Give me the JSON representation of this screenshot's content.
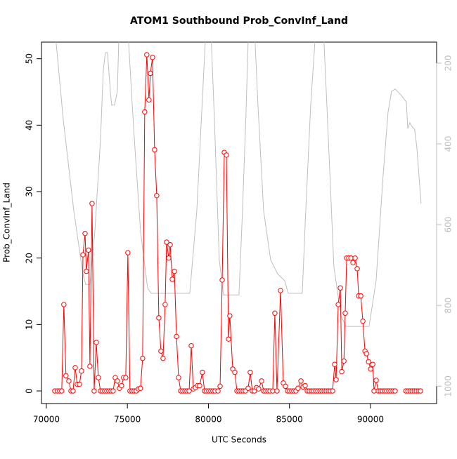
{
  "chart_data": {
    "type": "line",
    "title": "ATOM1 Southbound Prob_ConvInf_Land",
    "x_label": "UTC Seconds",
    "y_label": "Prob_ConvInf_Land",
    "xlim": [
      69700,
      94080
    ],
    "xticks": [
      70000,
      75000,
      80000,
      85000,
      90000
    ],
    "ylim": [
      -1.9,
      52.5
    ],
    "yticks": [
      0,
      10,
      20,
      30,
      40,
      50
    ],
    "y2lim": [
      1043,
      148
    ],
    "y2ticks": [
      200,
      400,
      600,
      800,
      1000
    ],
    "series": [
      {
        "color": "#ff0000",
        "axis": "y",
        "x": [
          70520,
          70690,
          70820,
          70950,
          71080,
          71210,
          71390,
          71520,
          71650,
          71780,
          71910,
          72040,
          72170,
          72260,
          72390,
          72470,
          72600,
          72690,
          72820,
          72950,
          73080,
          73210,
          73340,
          73470,
          73600,
          73730,
          73860,
          73990,
          74120,
          74250,
          74380,
          74510,
          74640,
          74770,
          74900,
          75030,
          75160,
          75290,
          75420,
          75550,
          75680,
          75810,
          75940,
          76070,
          76200,
          76330,
          76420,
          76550,
          76680,
          76810,
          76940,
          77070,
          77200,
          77330,
          77420,
          77550,
          77640,
          77770,
          77900,
          78030,
          78160,
          78290,
          78420,
          78550,
          78680,
          78810,
          78940,
          79070,
          79200,
          79330,
          79460,
          79630,
          79760,
          79890,
          80020,
          80150,
          80280,
          80410,
          80590,
          80720,
          80850,
          80980,
          81110,
          81240,
          81320,
          81500,
          81630,
          81760,
          81890,
          82020,
          82150,
          82280,
          82450,
          82580,
          82710,
          82840,
          82970,
          83100,
          83280,
          83410,
          83540,
          83670,
          83800,
          83970,
          84100,
          84230,
          84450,
          84620,
          84750,
          84880,
          85010,
          85140,
          85270,
          85400,
          85530,
          85710,
          85840,
          85970,
          86100,
          86230,
          86360,
          86490,
          86620,
          86750,
          86880,
          87010,
          87140,
          87270,
          87400,
          87530,
          87660,
          87790,
          87880,
          88010,
          88140,
          88230,
          88360,
          88440,
          88530,
          88660,
          88790,
          88920,
          89050,
          89180,
          89270,
          89400,
          89530,
          89660,
          89750,
          89880,
          90010,
          90140,
          90220,
          90350,
          90480,
          90610,
          90740,
          90870,
          91000,
          91130,
          91260,
          91390,
          91520,
          91830,
          92180,
          92310,
          92440,
          92570,
          92700,
          92830,
          92960,
          93090
        ],
        "values": [
          0,
          0,
          0,
          0,
          13,
          2.3,
          1.5,
          0,
          0,
          3.5,
          1,
          1,
          3,
          20.5,
          23.7,
          18,
          21.2,
          3.7,
          28.2,
          0,
          7.3,
          2,
          0,
          0,
          0,
          0,
          0,
          0,
          0,
          2,
          1.5,
          0.4,
          0.8,
          2,
          2,
          20.8,
          0,
          0,
          0,
          0,
          0.3,
          0.4,
          4.9,
          42,
          50.6,
          43.8,
          47.8,
          50.2,
          36.3,
          29.4,
          11,
          6,
          4.9,
          13,
          22.4,
          20,
          22,
          16.8,
          18,
          8.2,
          2,
          0,
          0,
          0,
          0,
          0,
          6.8,
          0.3,
          0.5,
          0.8,
          0.8,
          2.8,
          0,
          0,
          0,
          0,
          0,
          0,
          0,
          0.7,
          16.7,
          35.9,
          35.5,
          7.8,
          11.3,
          3.3,
          2.8,
          0,
          0,
          0,
          0,
          0,
          0.4,
          2.8,
          0,
          0,
          0.5,
          0.3,
          1.5,
          0,
          0,
          0,
          0,
          0,
          11.7,
          0,
          15.1,
          1.2,
          0.7,
          0,
          0,
          0,
          0,
          0,
          0.4,
          1.5,
          0.6,
          0.8,
          0,
          0,
          0,
          0,
          0,
          0,
          0,
          0,
          0,
          0,
          0,
          0,
          0,
          4,
          1.7,
          13,
          15.5,
          2.9,
          4.5,
          11.7,
          20,
          20,
          20,
          19.3,
          20,
          18.4,
          14.3,
          14.3,
          10.5,
          6,
          5.6,
          4.4,
          3.3,
          4,
          0,
          1.6,
          0,
          0,
          0,
          0,
          0,
          0,
          0,
          0,
          0,
          null,
          0,
          0,
          0,
          0,
          0,
          0,
          0,
          0
        ]
      },
      {
        "color": "#bebebe",
        "axis": "y2",
        "x": [
          70521,
          71041,
          71692,
          72256,
          72429,
          72690,
          72993,
          73340,
          73514,
          73644,
          73774,
          73948,
          74034,
          74208,
          74381,
          74468,
          74598,
          75075,
          75379,
          75813,
          76247,
          76464,
          77548,
          78850,
          79284,
          79718,
          79847,
          80151,
          80368,
          80671,
          80932,
          81886,
          82103,
          82320,
          82450,
          82537,
          82840,
          83057,
          83404,
          83838,
          84272,
          84706,
          84923,
          85791,
          86007,
          86311,
          86571,
          86658,
          87092,
          87309,
          87742,
          88176,
          88480,
          89911,
          90345,
          90779,
          91083,
          91300,
          91516,
          91863,
          92211,
          92297,
          92427,
          92557,
          92731,
          92861,
          92991,
          93121
        ],
        "values": [
          113,
          339,
          565,
          722,
          748,
          748,
          617,
          391,
          217,
          174,
          174,
          270,
          304,
          304,
          270,
          148,
          113,
          148,
          357,
          617,
          757,
          770,
          770,
          770,
          565,
          217,
          113,
          113,
          339,
          687,
          774,
          774,
          565,
          322,
          148,
          113,
          113,
          304,
          565,
          687,
          722,
          739,
          770,
          770,
          565,
          304,
          148,
          113,
          113,
          304,
          704,
          826,
          852,
          852,
          739,
          478,
          322,
          270,
          264,
          278,
          296,
          362,
          348,
          357,
          365,
          409,
          478,
          548
        ]
      }
    ]
  }
}
